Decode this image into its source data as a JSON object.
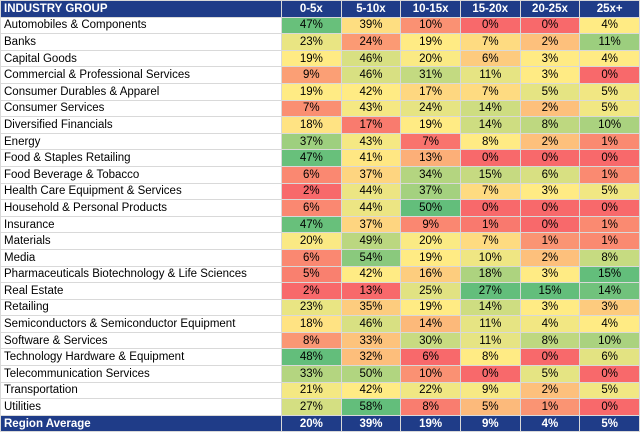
{
  "header": {
    "group_label": "INDUSTRY GROUP",
    "columns": [
      "0-5x",
      "5-10x",
      "10-15x",
      "15-20x",
      "20-25x",
      "25x+"
    ]
  },
  "rows": [
    {
      "name": "Automobiles & Components",
      "values": [
        "47%",
        "39%",
        "10%",
        "0%",
        "0%",
        "4%"
      ]
    },
    {
      "name": "Banks",
      "values": [
        "23%",
        "24%",
        "19%",
        "7%",
        "2%",
        "11%"
      ]
    },
    {
      "name": "Capital Goods",
      "values": [
        "19%",
        "46%",
        "20%",
        "6%",
        "3%",
        "4%"
      ]
    },
    {
      "name": "Commercial & Professional Services",
      "values": [
        "9%",
        "46%",
        "31%",
        "11%",
        "3%",
        "0%"
      ]
    },
    {
      "name": "Consumer Durables & Apparel",
      "values": [
        "19%",
        "42%",
        "17%",
        "7%",
        "5%",
        "5%"
      ]
    },
    {
      "name": "Consumer Services",
      "values": [
        "7%",
        "43%",
        "24%",
        "14%",
        "2%",
        "5%"
      ]
    },
    {
      "name": "Diversified Financials",
      "values": [
        "18%",
        "17%",
        "19%",
        "14%",
        "8%",
        "10%"
      ]
    },
    {
      "name": "Energy",
      "values": [
        "37%",
        "43%",
        "7%",
        "8%",
        "2%",
        "1%"
      ]
    },
    {
      "name": "Food & Staples Retailing",
      "values": [
        "47%",
        "41%",
        "13%",
        "0%",
        "0%",
        "0%"
      ]
    },
    {
      "name": "Food Beverage & Tobacco",
      "values": [
        "6%",
        "37%",
        "34%",
        "15%",
        "6%",
        "1%"
      ]
    },
    {
      "name": "Health Care Equipment & Services",
      "values": [
        "2%",
        "44%",
        "37%",
        "7%",
        "3%",
        "5%"
      ]
    },
    {
      "name": "Household & Personal Products",
      "values": [
        "6%",
        "44%",
        "50%",
        "0%",
        "0%",
        "0%"
      ]
    },
    {
      "name": "Insurance",
      "values": [
        "47%",
        "37%",
        "9%",
        "1%",
        "0%",
        "1%"
      ]
    },
    {
      "name": "Materials",
      "values": [
        "20%",
        "49%",
        "20%",
        "7%",
        "1%",
        "1%"
      ]
    },
    {
      "name": "Media",
      "values": [
        "6%",
        "54%",
        "19%",
        "10%",
        "2%",
        "8%"
      ]
    },
    {
      "name": "Pharmaceuticals Biotechnology & Life Sciences",
      "values": [
        "5%",
        "42%",
        "16%",
        "18%",
        "3%",
        "15%"
      ]
    },
    {
      "name": "Real Estate",
      "values": [
        "2%",
        "13%",
        "25%",
        "27%",
        "15%",
        "14%"
      ]
    },
    {
      "name": "Retailing",
      "values": [
        "23%",
        "35%",
        "19%",
        "14%",
        "3%",
        "3%"
      ]
    },
    {
      "name": "Semiconductors & Semiconductor Equipment",
      "values": [
        "18%",
        "46%",
        "14%",
        "11%",
        "4%",
        "4%"
      ]
    },
    {
      "name": "Software & Services",
      "values": [
        "8%",
        "33%",
        "30%",
        "11%",
        "8%",
        "10%"
      ]
    },
    {
      "name": "Technology Hardware & Equipment",
      "values": [
        "48%",
        "32%",
        "6%",
        "8%",
        "0%",
        "6%"
      ]
    },
    {
      "name": "Telecommunication Services",
      "values": [
        "33%",
        "50%",
        "10%",
        "0%",
        "5%",
        "0%"
      ]
    },
    {
      "name": "Transportation",
      "values": [
        "21%",
        "42%",
        "22%",
        "9%",
        "2%",
        "5%"
      ]
    },
    {
      "name": "Utilities",
      "values": [
        "27%",
        "58%",
        "8%",
        "5%",
        "1%",
        "0%"
      ]
    }
  ],
  "footer": {
    "label": "Region Average",
    "values": [
      "20%",
      "39%",
      "19%",
      "9%",
      "4%",
      "5%"
    ]
  },
  "colors": {
    "header_bg": "#1f3c88",
    "low": "#f8696b",
    "mid": "#ffeb84",
    "high": "#63be7b"
  }
}
